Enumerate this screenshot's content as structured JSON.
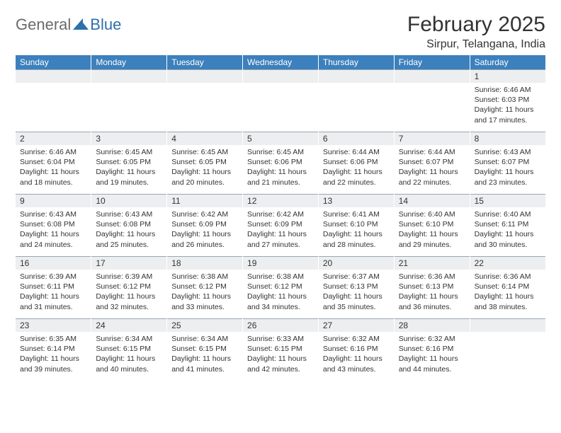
{
  "logo": {
    "text1": "General",
    "text2": "Blue"
  },
  "title": "February 2025",
  "location": "Sirpur, Telangana, India",
  "colors": {
    "header_bg": "#3c80bd",
    "header_text": "#ffffff",
    "daynum_bg": "#eceef0",
    "daynum_border": "#9aa5b0",
    "body_text": "#333333",
    "logo_gray": "#6a6a6a",
    "logo_blue": "#2f6fad"
  },
  "weekdays": [
    "Sunday",
    "Monday",
    "Tuesday",
    "Wednesday",
    "Thursday",
    "Friday",
    "Saturday"
  ],
  "weeks": [
    [
      null,
      null,
      null,
      null,
      null,
      null,
      {
        "n": "1",
        "sr": "6:46 AM",
        "ss": "6:03 PM",
        "dl": "11 hours and 17 minutes."
      }
    ],
    [
      {
        "n": "2",
        "sr": "6:46 AM",
        "ss": "6:04 PM",
        "dl": "11 hours and 18 minutes."
      },
      {
        "n": "3",
        "sr": "6:45 AM",
        "ss": "6:05 PM",
        "dl": "11 hours and 19 minutes."
      },
      {
        "n": "4",
        "sr": "6:45 AM",
        "ss": "6:05 PM",
        "dl": "11 hours and 20 minutes."
      },
      {
        "n": "5",
        "sr": "6:45 AM",
        "ss": "6:06 PM",
        "dl": "11 hours and 21 minutes."
      },
      {
        "n": "6",
        "sr": "6:44 AM",
        "ss": "6:06 PM",
        "dl": "11 hours and 22 minutes."
      },
      {
        "n": "7",
        "sr": "6:44 AM",
        "ss": "6:07 PM",
        "dl": "11 hours and 22 minutes."
      },
      {
        "n": "8",
        "sr": "6:43 AM",
        "ss": "6:07 PM",
        "dl": "11 hours and 23 minutes."
      }
    ],
    [
      {
        "n": "9",
        "sr": "6:43 AM",
        "ss": "6:08 PM",
        "dl": "11 hours and 24 minutes."
      },
      {
        "n": "10",
        "sr": "6:43 AM",
        "ss": "6:08 PM",
        "dl": "11 hours and 25 minutes."
      },
      {
        "n": "11",
        "sr": "6:42 AM",
        "ss": "6:09 PM",
        "dl": "11 hours and 26 minutes."
      },
      {
        "n": "12",
        "sr": "6:42 AM",
        "ss": "6:09 PM",
        "dl": "11 hours and 27 minutes."
      },
      {
        "n": "13",
        "sr": "6:41 AM",
        "ss": "6:10 PM",
        "dl": "11 hours and 28 minutes."
      },
      {
        "n": "14",
        "sr": "6:40 AM",
        "ss": "6:10 PM",
        "dl": "11 hours and 29 minutes."
      },
      {
        "n": "15",
        "sr": "6:40 AM",
        "ss": "6:11 PM",
        "dl": "11 hours and 30 minutes."
      }
    ],
    [
      {
        "n": "16",
        "sr": "6:39 AM",
        "ss": "6:11 PM",
        "dl": "11 hours and 31 minutes."
      },
      {
        "n": "17",
        "sr": "6:39 AM",
        "ss": "6:12 PM",
        "dl": "11 hours and 32 minutes."
      },
      {
        "n": "18",
        "sr": "6:38 AM",
        "ss": "6:12 PM",
        "dl": "11 hours and 33 minutes."
      },
      {
        "n": "19",
        "sr": "6:38 AM",
        "ss": "6:12 PM",
        "dl": "11 hours and 34 minutes."
      },
      {
        "n": "20",
        "sr": "6:37 AM",
        "ss": "6:13 PM",
        "dl": "11 hours and 35 minutes."
      },
      {
        "n": "21",
        "sr": "6:36 AM",
        "ss": "6:13 PM",
        "dl": "11 hours and 36 minutes."
      },
      {
        "n": "22",
        "sr": "6:36 AM",
        "ss": "6:14 PM",
        "dl": "11 hours and 38 minutes."
      }
    ],
    [
      {
        "n": "23",
        "sr": "6:35 AM",
        "ss": "6:14 PM",
        "dl": "11 hours and 39 minutes."
      },
      {
        "n": "24",
        "sr": "6:34 AM",
        "ss": "6:15 PM",
        "dl": "11 hours and 40 minutes."
      },
      {
        "n": "25",
        "sr": "6:34 AM",
        "ss": "6:15 PM",
        "dl": "11 hours and 41 minutes."
      },
      {
        "n": "26",
        "sr": "6:33 AM",
        "ss": "6:15 PM",
        "dl": "11 hours and 42 minutes."
      },
      {
        "n": "27",
        "sr": "6:32 AM",
        "ss": "6:16 PM",
        "dl": "11 hours and 43 minutes."
      },
      {
        "n": "28",
        "sr": "6:32 AM",
        "ss": "6:16 PM",
        "dl": "11 hours and 44 minutes."
      },
      null
    ]
  ],
  "labels": {
    "sunrise": "Sunrise:",
    "sunset": "Sunset:",
    "daylight": "Daylight:"
  }
}
